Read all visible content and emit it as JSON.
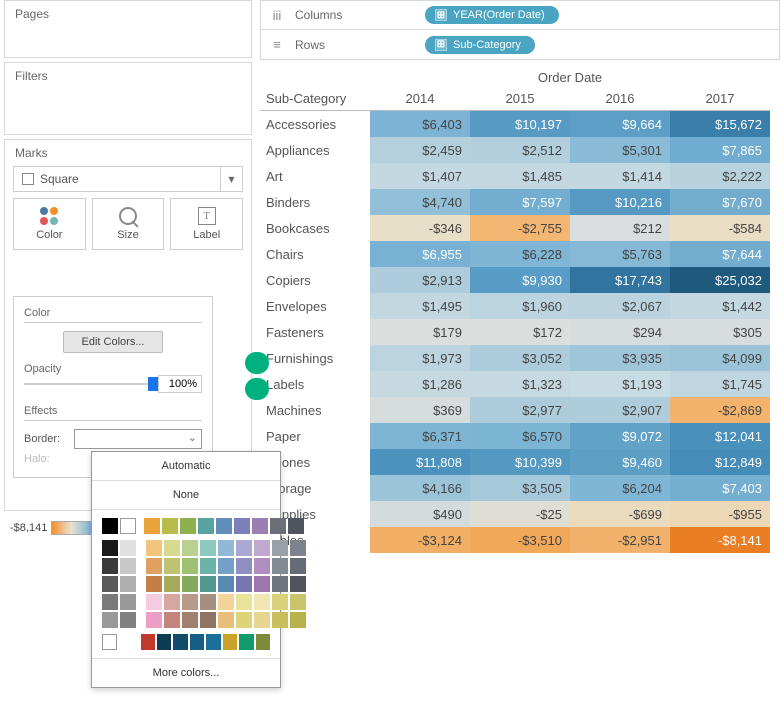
{
  "panels": {
    "pages": "Pages",
    "filters": "Filters",
    "marks": "Marks",
    "markType": "Square",
    "color": "Color",
    "size": "Size",
    "label": "Label"
  },
  "colorPopup": {
    "section_color": "Color",
    "edit": "Edit Colors...",
    "opacity_label": "Opacity",
    "opacity_value": "100%",
    "section_effects": "Effects",
    "border": "Border:",
    "halo": "Halo:",
    "legend_min": "-$8,141"
  },
  "borderPopup": {
    "automatic": "Automatic",
    "none": "None",
    "more": "More colors...",
    "topRow": [
      {
        "c": "#000000"
      },
      {
        "c": "#ffffff",
        "outline": true
      },
      {
        "c": "#e8a33d"
      },
      {
        "c": "#b8bc4b"
      },
      {
        "c": "#8fb04e"
      },
      {
        "c": "#5aa3a3"
      },
      {
        "c": "#5f8fb8"
      },
      {
        "c": "#7d7fb8"
      },
      {
        "c": "#9a7fb3"
      },
      {
        "c": "#6b6f78"
      },
      {
        "c": "#50555e"
      }
    ],
    "grid": [
      [
        "#1a1a1a",
        "#e0e0e0",
        "#f2c57c",
        "#d6d98e",
        "#b8d18e",
        "#8ec9c0",
        "#93b7d6",
        "#a9a9d4",
        "#c1a8cf",
        "#9aa0a8",
        "#7d838c"
      ],
      [
        "#3a3a3a",
        "#c8c8c8",
        "#e0a060",
        "#bec271",
        "#9dc071",
        "#6bb3a8",
        "#749fc6",
        "#8f8fc4",
        "#b08fc0",
        "#848a93",
        "#666c75"
      ],
      [
        "#5a5a5a",
        "#b0b0b0",
        "#c57f45",
        "#a5a95a",
        "#84a95a",
        "#4f998f",
        "#5a89b3",
        "#7676b3",
        "#9b76af",
        "#6e747d",
        "#50555e"
      ],
      [
        "#7a7a7a",
        "#989898",
        "#f4cbe0",
        "#d7a6a1",
        "#b89a8a",
        "#a58f80",
        "#f2d49b",
        "#e9e29b",
        "#f2e6b3",
        "#d9d27a",
        "#c9c46a"
      ],
      [
        "#9a9a9a",
        "#808080",
        "#eb9fc4",
        "#c4857f",
        "#a0806f",
        "#8f7565",
        "#e9be7a",
        "#ddd47a",
        "#e6d68f",
        "#c9be5c",
        "#b8b24c"
      ]
    ],
    "lastRow": [
      {
        "c": "#ffffff",
        "outline": true
      },
      {
        "c": "#c0392b"
      },
      {
        "c": "#0e3a53"
      },
      {
        "c": "#124c6b"
      },
      {
        "c": "#165e83"
      },
      {
        "c": "#1a709b"
      },
      {
        "c": "#c9a227"
      },
      {
        "c": "#0f9b6c"
      },
      {
        "c": "#7c8a3a"
      }
    ]
  },
  "shelves": {
    "columns": "Columns",
    "rows": "Rows",
    "columnPill": "YEAR(Order Date)",
    "rowPill": "Sub-Category"
  },
  "table": {
    "superHeader": "Order Date",
    "rowHeaderTitle": "Sub-Category",
    "years": [
      "2014",
      "2015",
      "2016",
      "2017"
    ],
    "rows": [
      {
        "name": "Accessories",
        "v": [
          {
            "t": "$6,403",
            "c": "#7db4d5"
          },
          {
            "t": "$10,197",
            "c": "#579bc4",
            "w": true
          },
          {
            "t": "$9,664",
            "c": "#5c9ec6",
            "w": true
          },
          {
            "t": "$15,672",
            "c": "#3a7fab",
            "w": true
          }
        ]
      },
      {
        "name": "Appliances",
        "v": [
          {
            "t": "$2,459",
            "c": "#b5d0dd"
          },
          {
            "t": "$2,512",
            "c": "#b3cfdd"
          },
          {
            "t": "$5,301",
            "c": "#8abbd7"
          },
          {
            "t": "$7,865",
            "c": "#70acd0",
            "w": true
          }
        ]
      },
      {
        "name": "Art",
        "v": [
          {
            "t": "$1,407",
            "c": "#c4d8e1"
          },
          {
            "t": "$1,485",
            "c": "#c3d7e0"
          },
          {
            "t": "$1,414",
            "c": "#c4d8e1"
          },
          {
            "t": "$2,222",
            "c": "#b8d2de"
          }
        ]
      },
      {
        "name": "Binders",
        "v": [
          {
            "t": "$4,740",
            "c": "#92c0d9"
          },
          {
            "t": "$7,597",
            "c": "#73aed1",
            "w": true
          },
          {
            "t": "$10,216",
            "c": "#569ac3",
            "w": true
          },
          {
            "t": "$7,670",
            "c": "#72add0",
            "w": true
          }
        ]
      },
      {
        "name": "Bookcases",
        "v": [
          {
            "t": "-$346",
            "c": "#e8dfc9"
          },
          {
            "t": "-$2,755",
            "c": "#f3b672"
          },
          {
            "t": "$212",
            "c": "#d9dddd"
          },
          {
            "t": "-$584",
            "c": "#e9ddc3"
          }
        ]
      },
      {
        "name": "Chairs",
        "v": [
          {
            "t": "$6,955",
            "c": "#78b1d3",
            "w": true
          },
          {
            "t": "$6,228",
            "c": "#80b6d5"
          },
          {
            "t": "$5,763",
            "c": "#85b9d6"
          },
          {
            "t": "$7,644",
            "c": "#72add0",
            "w": true
          }
        ]
      },
      {
        "name": "Copiers",
        "v": [
          {
            "t": "$2,913",
            "c": "#afccdc"
          },
          {
            "t": "$9,930",
            "c": "#599cc5",
            "w": true
          },
          {
            "t": "$17,743",
            "c": "#31749f",
            "w": true
          },
          {
            "t": "$25,032",
            "c": "#1f5a7e",
            "w": true
          }
        ]
      },
      {
        "name": "Envelopes",
        "v": [
          {
            "t": "$1,495",
            "c": "#c3d7e0"
          },
          {
            "t": "$1,960",
            "c": "#bcd4df"
          },
          {
            "t": "$2,067",
            "c": "#bad3de"
          },
          {
            "t": "$1,442",
            "c": "#c4d8e1"
          }
        ]
      },
      {
        "name": "Fasteners",
        "v": [
          {
            "t": "$179",
            "c": "#dadedd"
          },
          {
            "t": "$172",
            "c": "#dadedd"
          },
          {
            "t": "$294",
            "c": "#d7dcdc"
          },
          {
            "t": "$305",
            "c": "#d7dcdc"
          }
        ]
      },
      {
        "name": "Furnishings",
        "v": [
          {
            "t": "$1,973",
            "c": "#bcd4df"
          },
          {
            "t": "$3,052",
            "c": "#accbdb"
          },
          {
            "t": "$3,935",
            "c": "#9fc5d9"
          },
          {
            "t": "$4,099",
            "c": "#9cc4d9"
          }
        ]
      },
      {
        "name": "Labels",
        "v": [
          {
            "t": "$1,286",
            "c": "#c6d9e1"
          },
          {
            "t": "$1,323",
            "c": "#c6d9e1"
          },
          {
            "t": "$1,193",
            "c": "#c8dae2"
          },
          {
            "t": "$1,745",
            "c": "#bfd5e0"
          }
        ]
      },
      {
        "name": "Machines",
        "v": [
          {
            "t": "$369",
            "c": "#d6dcdc"
          },
          {
            "t": "$2,977",
            "c": "#aecbdb"
          },
          {
            "t": "$2,907",
            "c": "#afccdc"
          },
          {
            "t": "-$2,869",
            "c": "#f3b36d"
          }
        ]
      },
      {
        "name": "Paper",
        "v": [
          {
            "t": "$6,371",
            "c": "#7eb5d5"
          },
          {
            "t": "$6,570",
            "c": "#7cb4d4"
          },
          {
            "t": "$9,072",
            "c": "#62a1c8",
            "w": true
          },
          {
            "t": "$12,041",
            "c": "#4a90bc",
            "w": true
          }
        ]
      },
      {
        "name": "Phones",
        "v": [
          {
            "t": "$11,808",
            "c": "#4c92be",
            "w": true
          },
          {
            "t": "$10,399",
            "c": "#5499c2",
            "w": true
          },
          {
            "t": "$9,460",
            "c": "#5e9fc6",
            "w": true
          },
          {
            "t": "$12,849",
            "c": "#468cb8",
            "w": true
          }
        ]
      },
      {
        "name": "Storage",
        "v": [
          {
            "t": "$4,166",
            "c": "#9bc4d9"
          },
          {
            "t": "$3,505",
            "c": "#a5c8da"
          },
          {
            "t": "$6,204",
            "c": "#80b6d5"
          },
          {
            "t": "$7,403",
            "c": "#74afd1",
            "w": true
          }
        ]
      },
      {
        "name": "Supplies",
        "v": [
          {
            "t": "$490",
            "c": "#d4dbdc"
          },
          {
            "t": "-$25",
            "c": "#dfded4"
          },
          {
            "t": "-$699",
            "c": "#eadbbf"
          },
          {
            "t": "-$955",
            "c": "#ecd8b6"
          }
        ]
      },
      {
        "name": "Tables",
        "v": [
          {
            "t": "-$3,124",
            "c": "#f2ae64"
          },
          {
            "t": "-$3,510",
            "c": "#f1a859"
          },
          {
            "t": "-$2,951",
            "c": "#f2b16a"
          },
          {
            "t": "-$8,141",
            "c": "#ea7e24",
            "w": true
          }
        ]
      }
    ]
  },
  "dotsColors": [
    "#4e79a7",
    "#f28e2b",
    "#e15759",
    "#76b7b2"
  ]
}
